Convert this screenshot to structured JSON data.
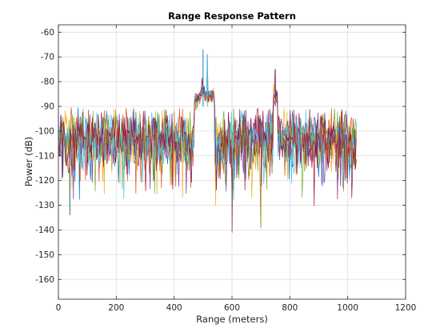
{
  "chart_data": {
    "type": "line",
    "title": "Range Response Pattern",
    "xlabel": "Range (meters)",
    "ylabel": "Power (dB)",
    "xlim": [
      0,
      1200
    ],
    "ylim": [
      -168,
      -57
    ],
    "x_ticks": [
      0,
      200,
      400,
      600,
      800,
      1000,
      1200
    ],
    "y_ticks": [
      -160,
      -150,
      -140,
      -130,
      -120,
      -110,
      -100,
      -90,
      -80,
      -70,
      -60
    ],
    "grid": true,
    "legend": "none",
    "x_range_of_data": [
      0,
      1030
    ],
    "noise_floor_db": [
      -93,
      -113
    ],
    "peaks": [
      {
        "x": 500,
        "y": -67
      },
      {
        "x": 515,
        "y": -69
      },
      {
        "x": 750,
        "y": -75
      }
    ],
    "minima": [
      {
        "x": 600,
        "y": -141
      },
      {
        "x": 700,
        "y": -139
      },
      {
        "x": 40,
        "y": -134
      }
    ],
    "series_colors": [
      "#0072BD",
      "#D95319",
      "#EDB120",
      "#7E2F8E",
      "#77AC30",
      "#4DBEEE",
      "#A2142F"
    ],
    "series_count": 7
  }
}
